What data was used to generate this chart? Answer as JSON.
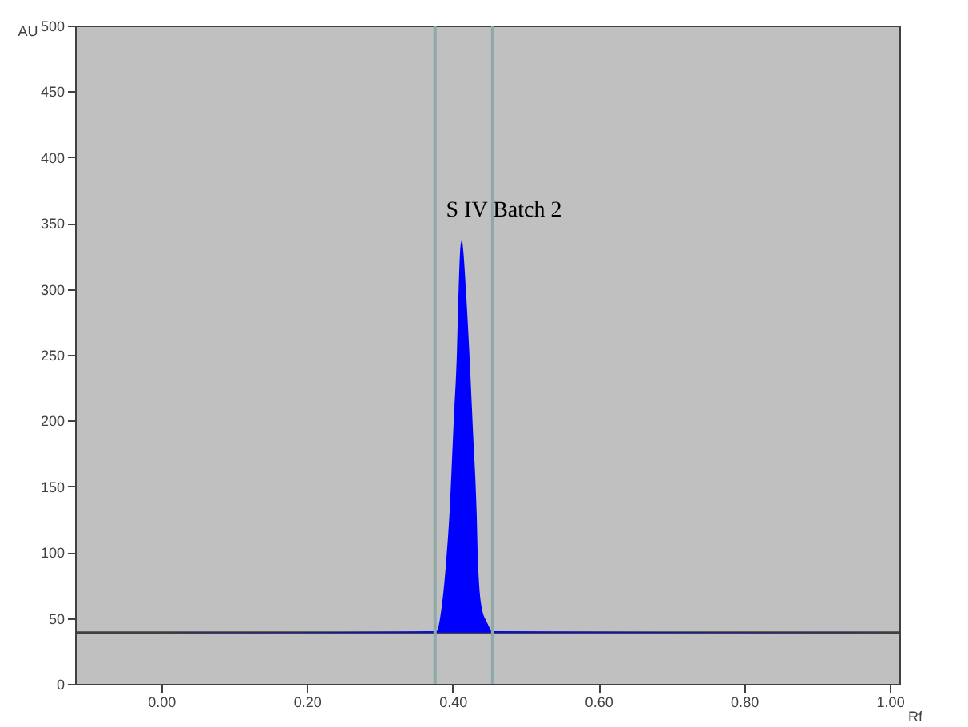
{
  "chart_data": {
    "type": "line",
    "xlabel": "Rf",
    "ylabel": "AU",
    "xlim": [
      -0.118,
      1.013
    ],
    "ylim": [
      0,
      500
    ],
    "xticks": [
      {
        "value": 0,
        "label": "0.00"
      },
      {
        "value": 0.2,
        "label": "0.20"
      },
      {
        "value": 0.4,
        "label": "0.40"
      },
      {
        "value": 0.6,
        "label": "0.60"
      },
      {
        "value": 0.8,
        "label": "0.80"
      },
      {
        "value": 1,
        "label": "1.00"
      }
    ],
    "yticks": [
      0,
      50,
      100,
      150,
      200,
      250,
      300,
      350,
      400,
      450,
      500
    ],
    "grid": false,
    "marker": "none",
    "line_style": "solid",
    "series": [
      {
        "type": "line",
        "color": "#404040",
        "x": [
          -0.118,
          1.013
        ],
        "values": [
          39,
          39
        ]
      },
      {
        "type": "area",
        "color": "#0000ff",
        "x": [
          0,
          0.378,
          0.385,
          0.391,
          0.396,
          0.401,
          0.406,
          0.408,
          0.411,
          0.413,
          0.414,
          0.419,
          0.423,
          0.428,
          0.433,
          0.435,
          0.44,
          0.447,
          0.455,
          1
        ],
        "values": [
          39,
          40,
          58,
          91,
          131,
          192,
          252,
          293,
          333,
          337,
          333,
          293,
          252,
          192,
          131,
          91,
          58,
          47,
          40,
          39
        ]
      }
    ],
    "ref_lines": [
      {
        "axis": "x",
        "value": 0.376,
        "color": "#8fa8a8"
      },
      {
        "axis": "x",
        "value": 0.455,
        "color": "#8fa8a8"
      }
    ],
    "annotations": [
      {
        "text": "S IV Batch 2",
        "x": 0.413,
        "y": 337
      }
    ]
  }
}
